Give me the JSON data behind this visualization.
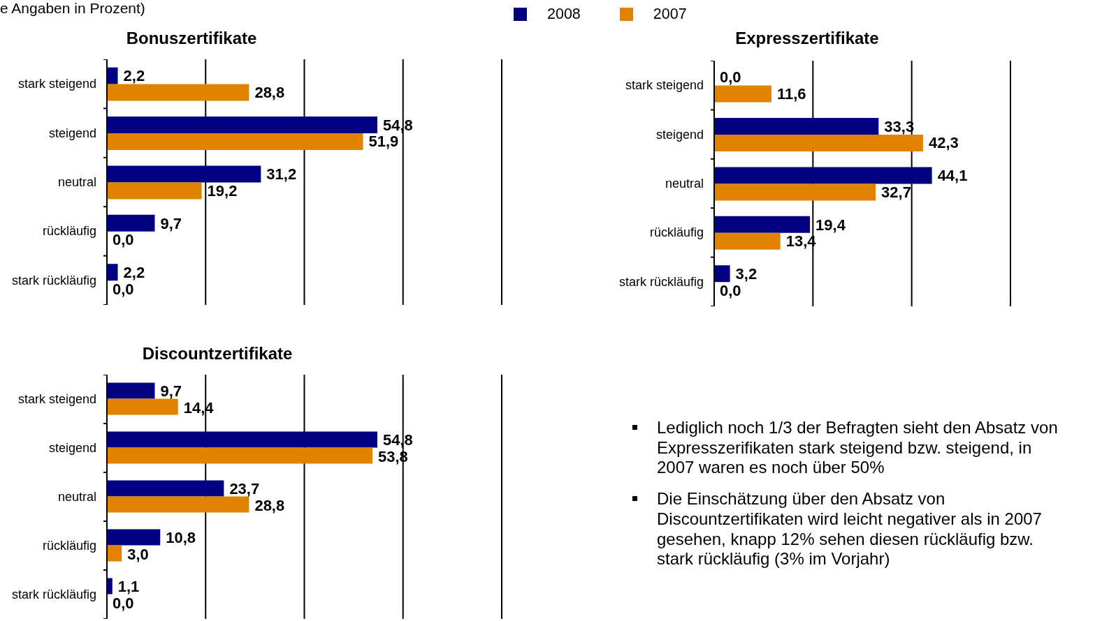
{
  "chart_data": [
    {
      "type": "bar",
      "orientation": "horizontal",
      "title": "Bonuszertifikate",
      "subtitle": "e Angaben in Prozent)",
      "categories": [
        "stark steigend",
        "steigend",
        "neutral",
        "rückläufig",
        "stark rückläufig"
      ],
      "series": [
        {
          "name": "2008",
          "color": "#000080",
          "values": [
            2.2,
            54.8,
            31.2,
            9.7,
            2.2
          ],
          "value_labels": [
            "2,2",
            "54,8",
            "31,2",
            "9,7",
            "2,2"
          ]
        },
        {
          "name": "2007",
          "color": "#df8300",
          "values": [
            28.8,
            51.9,
            19.2,
            0.0,
            0.0
          ],
          "value_labels": [
            "28,8",
            "51,9",
            "19,2",
            "0,0",
            "0,0"
          ]
        }
      ],
      "xlim": [
        0,
        80
      ],
      "xticks": [
        {
          "value": 0,
          "label": null
        },
        {
          "value": 20,
          "label": null
        },
        {
          "value": 40,
          "label": null
        },
        {
          "value": 60,
          "label": null
        },
        {
          "value": 80,
          "label": null
        }
      ],
      "grid": "x",
      "tick_labels": "y",
      "legend": "top"
    },
    {
      "type": "bar",
      "orientation": "horizontal",
      "title": "Expresszertifikate",
      "categories": [
        "stark steigend",
        "steigend",
        "neutral",
        "rückläufig",
        "stark rückläufig"
      ],
      "series": [
        {
          "name": "2008",
          "color": "#000080",
          "values": [
            0.0,
            33.3,
            44.1,
            19.4,
            3.2
          ],
          "value_labels": [
            "0,0",
            "33,3",
            "44,1",
            "19,4",
            "3,2"
          ]
        },
        {
          "name": "2007",
          "color": "#df8300",
          "values": [
            11.6,
            42.3,
            32.7,
            13.4,
            0.0
          ],
          "value_labels": [
            "11,6",
            "42,3",
            "32,7",
            "13,4",
            "0,0"
          ]
        }
      ],
      "xlim": [
        0,
        60
      ],
      "xticks": [
        {
          "value": 0,
          "label": null
        },
        {
          "value": 20,
          "label": null
        },
        {
          "value": 40,
          "label": null
        },
        {
          "value": 60,
          "label": null
        }
      ],
      "grid": "x",
      "tick_labels": "y"
    },
    {
      "type": "bar",
      "orientation": "horizontal",
      "title": "Discountzertifikate",
      "categories": [
        "stark steigend",
        "steigend",
        "neutral",
        "rückläufig",
        "stark rückläufig"
      ],
      "series": [
        {
          "name": "2008",
          "color": "#000080",
          "values": [
            9.7,
            54.8,
            23.7,
            10.8,
            1.1
          ],
          "value_labels": [
            "9,7",
            "54,8",
            "23,7",
            "10,8",
            "1,1"
          ]
        },
        {
          "name": "2007",
          "color": "#df8300",
          "values": [
            14.4,
            53.8,
            28.8,
            3.0,
            0.0
          ],
          "value_labels": [
            "14,4",
            "53,8",
            "28,8",
            "3,0",
            "0,0"
          ]
        }
      ],
      "xlim": [
        0,
        80
      ],
      "xticks": [
        {
          "value": 0,
          "label": null
        },
        {
          "value": 20,
          "label": null
        },
        {
          "value": 40,
          "label": null
        },
        {
          "value": 60,
          "label": null
        },
        {
          "value": 80,
          "label": null
        }
      ],
      "grid": "x",
      "tick_labels": "y"
    },
    {
      "type": "other",
      "annotations": [
        "Lediglich noch 1/3 der Befragten sieht den Absatz von Expresszerifikaten stark steigend bzw. steigend, in 2007 waren es noch über 50%",
        "Die Einschätzung über den Absatz von Discountzertifikaten wird leicht negativer als in 2007 gesehen, knapp 12% sehen diesen rückläufig bzw. stark rückläufig (3% im Vorjahr)"
      ]
    }
  ]
}
